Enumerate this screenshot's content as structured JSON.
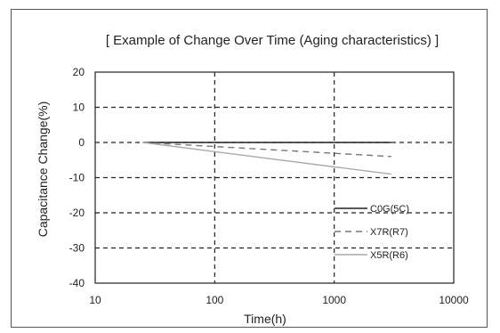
{
  "chart_data": {
    "type": "line",
    "title": "[ Example of Change Over Time (Aging characteristics) ]",
    "xlabel": "Time(h)",
    "ylabel": "Capacitance Change(%)",
    "x_scale": "log",
    "xlim": [
      10,
      10000
    ],
    "ylim": [
      -40,
      20
    ],
    "x_ticks": [
      10,
      100,
      1000,
      10000
    ],
    "x_tick_labels": [
      "10",
      "100",
      "1000",
      "10000"
    ],
    "y_ticks": [
      20,
      10,
      0,
      -10,
      -20,
      -30,
      -40
    ],
    "y_tick_labels": [
      "20",
      "10",
      "0",
      "-10",
      "-20",
      "-30",
      "-40"
    ],
    "grid": true,
    "legend_position": "bottom-right",
    "series": [
      {
        "name": "C0G(5C)",
        "color": "#222222",
        "style": "solid",
        "points": [
          [
            25,
            0
          ],
          [
            3000,
            0
          ]
        ]
      },
      {
        "name": "X7R(R7)",
        "color": "#777777",
        "style": "dashed",
        "points": [
          [
            25,
            0
          ],
          [
            3000,
            -4
          ]
        ]
      },
      {
        "name": "X5R(R6)",
        "color": "#aaaaaa",
        "style": "solid",
        "points": [
          [
            25,
            0
          ],
          [
            3000,
            -9
          ]
        ]
      }
    ]
  }
}
